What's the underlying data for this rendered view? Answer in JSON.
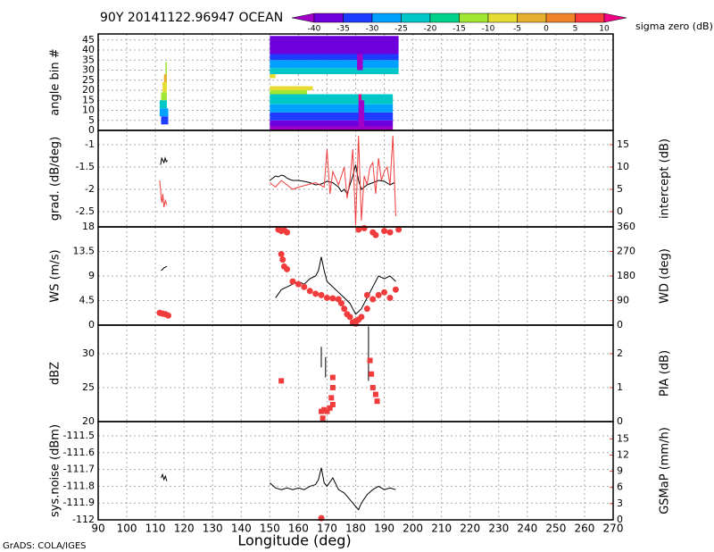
{
  "figure": {
    "title": "90Y 20141122.96947 OCEAN",
    "xlabel": "Longitude (deg)",
    "footer": "GrADS: COLA/IGES",
    "xlim": [
      90,
      270
    ],
    "xticks": [
      90,
      100,
      110,
      120,
      130,
      140,
      150,
      160,
      170,
      180,
      190,
      200,
      210,
      220,
      230,
      240,
      250,
      260,
      270
    ],
    "colorbar": {
      "label": "sigma zero (dB)",
      "ticks": [
        -40,
        -35,
        -30,
        -25,
        -20,
        -15,
        -10,
        -5,
        0,
        5,
        10
      ],
      "colors": [
        "#a000c8",
        "#6e00dc",
        "#1e3cff",
        "#00a0ff",
        "#00c8c8",
        "#00d28c",
        "#a0e632",
        "#e6dc32",
        "#e6af2d",
        "#f08228",
        "#fa3c3c",
        "#f00082"
      ]
    }
  },
  "chart_data": [
    {
      "type": "heatmap",
      "ylabel": "angle bin #",
      "ylim": [
        0,
        48
      ],
      "yticks": [
        0,
        5,
        10,
        15,
        20,
        25,
        30,
        35,
        40,
        45
      ],
      "cells": [
        {
          "x": [
            112,
            114.5
          ],
          "y": [
            3,
            7
          ],
          "value": -33
        },
        {
          "x": [
            111.5,
            114.5
          ],
          "y": [
            7,
            11
          ],
          "value": -27
        },
        {
          "x": [
            111.5,
            114
          ],
          "y": [
            11,
            15
          ],
          "value": -21
        },
        {
          "x": [
            112,
            114
          ],
          "y": [
            15,
            19
          ],
          "value": -13
        },
        {
          "x": [
            112.5,
            114
          ],
          "y": [
            19,
            24
          ],
          "value": -8
        },
        {
          "x": [
            113,
            114
          ],
          "y": [
            24,
            28
          ],
          "value": -3
        },
        {
          "x": [
            113.5,
            114
          ],
          "y": [
            28,
            34
          ],
          "value": -12
        },
        {
          "x": [
            150,
            193
          ],
          "y": [
            0,
            2
          ],
          "value": -42
        },
        {
          "x": [
            150,
            193
          ],
          "y": [
            2,
            5
          ],
          "value": -37
        },
        {
          "x": [
            150,
            193
          ],
          "y": [
            5,
            9
          ],
          "value": -32
        },
        {
          "x": [
            150,
            193
          ],
          "y": [
            9,
            13
          ],
          "value": -27
        },
        {
          "x": [
            150,
            193
          ],
          "y": [
            13,
            18
          ],
          "value": -22
        },
        {
          "x": [
            150,
            163
          ],
          "y": [
            18,
            20
          ],
          "value": -12
        },
        {
          "x": [
            150,
            165
          ],
          "y": [
            20,
            22
          ],
          "value": -8
        },
        {
          "x": [
            150,
            152
          ],
          "y": [
            26,
            28
          ],
          "value": -7
        },
        {
          "x": [
            150,
            195
          ],
          "y": [
            28,
            31
          ],
          "value": -22
        },
        {
          "x": [
            150,
            195
          ],
          "y": [
            31,
            35
          ],
          "value": -27
        },
        {
          "x": [
            150,
            195
          ],
          "y": [
            35,
            38
          ],
          "value": -32
        },
        {
          "x": [
            150,
            195
          ],
          "y": [
            38,
            47
          ],
          "value": -38
        },
        {
          "x": [
            181,
            183
          ],
          "y": [
            0,
            15
          ],
          "value": -45
        },
        {
          "x": [
            180.5,
            182.5
          ],
          "y": [
            30,
            38
          ],
          "value": -42
        },
        {
          "x": [
            181,
            182
          ],
          "y": [
            15,
            18
          ],
          "value": 12
        }
      ]
    },
    {
      "type": "line",
      "ylabel": "grad. (dB/deg)",
      "ylim": [
        -2.84,
        -0.68
      ],
      "yticks": [
        -2.5,
        -2,
        -1.5,
        -1
      ],
      "y2label": "intercept (dB)",
      "y2lim": [
        -3.4,
        18.2
      ],
      "y2ticks": [
        0,
        5,
        10,
        15
      ],
      "series": [
        {
          "style": "line",
          "axis": "y",
          "color": "#000000",
          "x": [
            111.8,
            112.2,
            112.6,
            113,
            113.4,
            113.8,
            114.2,
            130,
            150,
            151,
            152,
            153,
            154,
            155,
            156,
            157,
            158,
            160,
            162,
            164,
            166,
            168,
            170,
            172,
            174,
            175,
            176,
            177,
            178,
            179,
            180,
            181,
            182,
            184,
            186,
            188,
            190,
            192,
            193.5
          ],
          "values": [
            -1.45,
            -1.3,
            -1.35,
            -1.4,
            -1.3,
            -1.38,
            -1.35,
            null,
            -1.8,
            -1.75,
            -1.7,
            -1.72,
            -1.68,
            -1.7,
            -1.75,
            -1.78,
            -1.8,
            -1.8,
            -1.82,
            -1.85,
            -1.9,
            -1.88,
            -1.82,
            -1.85,
            -1.95,
            -2.05,
            -2.0,
            -2.1,
            -1.9,
            -1.7,
            -1.45,
            -1.8,
            -2.0,
            -1.9,
            -1.85,
            -1.8,
            -1.82,
            -1.9,
            -1.85
          ]
        },
        {
          "style": "line",
          "axis": "y2",
          "color": "#f03c3c",
          "x": [
            111.5,
            111.8,
            112,
            112.3,
            112.6,
            113,
            113.5,
            114,
            130,
            150,
            152,
            154,
            156,
            158,
            160,
            163,
            166,
            169,
            170,
            171,
            172,
            174,
            176,
            177,
            178,
            179,
            180,
            181,
            182,
            183,
            184,
            185,
            186,
            187,
            188,
            189,
            190,
            191,
            192,
            193,
            194
          ],
          "values": [
            7,
            5,
            3,
            2,
            4,
            1,
            2.5,
            1.5,
            null,
            6.5,
            5.5,
            7,
            6,
            5,
            5.5,
            6,
            6.5,
            5.5,
            14,
            4,
            9,
            6,
            10,
            3,
            7,
            14,
            -3,
            17,
            -2,
            8,
            6,
            10,
            11,
            4,
            12,
            7,
            9,
            10,
            6,
            17,
            -1
          ]
        }
      ]
    },
    {
      "type": "line",
      "ylabel": "WS (m/s)",
      "ylim": [
        0,
        18
      ],
      "yticks": [
        0,
        4.5,
        9,
        13.5,
        18
      ],
      "y2label": "WD (deg)",
      "y2lim": [
        0,
        360
      ],
      "y2ticks": [
        0,
        90,
        180,
        270,
        360
      ],
      "series": [
        {
          "style": "line",
          "axis": "y",
          "color": "#000000",
          "x": [
            112,
            112.5,
            113,
            113.5,
            114,
            130,
            152,
            154,
            156,
            158,
            160,
            162,
            164,
            166,
            167,
            168,
            169,
            170,
            172,
            174,
            176,
            178,
            180,
            182,
            184,
            186,
            188,
            190,
            192,
            194
          ],
          "values": [
            10,
            10.2,
            10.5,
            10.6,
            10.8,
            null,
            5,
            6.5,
            7,
            7.5,
            8,
            7.5,
            8.5,
            9,
            10,
            12.5,
            10,
            8,
            7,
            6,
            5,
            4,
            2,
            3,
            5,
            7,
            9,
            8.5,
            9,
            8
          ]
        },
        {
          "style": "circle",
          "axis": "y2",
          "color": "#f03c3c",
          "x": [
            111.5,
            112.5,
            113.5,
            114.5,
            153,
            154,
            155,
            156,
            154,
            154.5,
            155,
            156,
            158,
            160,
            162,
            164,
            166,
            168,
            170,
            172,
            174,
            175,
            176,
            177,
            179,
            180,
            181,
            182,
            184,
            186,
            188,
            190,
            192,
            194,
            181,
            183,
            186,
            187,
            190,
            192,
            195,
            184,
            178,
            180
          ],
          "values": [
            45,
            42,
            40,
            35,
            350,
            345,
            348,
            340,
            260,
            240,
            215,
            205,
            160,
            150,
            140,
            125,
            115,
            110,
            100,
            98,
            95,
            80,
            60,
            40,
            10,
            5,
            20,
            30,
            60,
            95,
            110,
            120,
            100,
            130,
            350,
            355,
            340,
            330,
            345,
            340,
            350,
            110,
            30,
            15
          ]
        }
      ]
    },
    {
      "type": "line",
      "ylabel": "dBZ",
      "ylim": [
        20,
        34.2
      ],
      "yticks": [
        20,
        25,
        30
      ],
      "y2label": "PIA (dB)",
      "y2lim": [
        0,
        2.84
      ],
      "y2ticks": [
        0,
        1,
        2
      ],
      "series": [
        {
          "style": "line",
          "axis": "y",
          "color": "#000000",
          "x": [
            168,
            168,
            168.5,
            169.5,
            169.5,
            170,
            184.5,
            184.5
          ],
          "values": [
            28,
            31,
            null,
            26.5,
            29.5,
            null,
            26,
            34
          ]
        },
        {
          "style": "square",
          "axis": "y2",
          "color": "#f03c3c",
          "x": [
            154,
            168,
            168.5,
            169,
            170,
            171,
            171.5,
            172,
            172,
            172,
            185,
            185.5,
            186,
            187.5,
            187
          ],
          "values": [
            1.2,
            0.3,
            0.1,
            0.35,
            0.3,
            0.4,
            0.7,
            1.0,
            1.3,
            0.5,
            1.8,
            1.4,
            1.0,
            0.6,
            0.8
          ]
        }
      ]
    },
    {
      "type": "line",
      "ylabel": "sys.noise (dBm)",
      "ylim": [
        -112,
        -111.415
      ],
      "yticks": [
        -112,
        -111.9,
        -111.8,
        -111.7,
        -111.6,
        -111.5
      ],
      "y2label": "GSMaP (mm/h)",
      "y2lim": [
        0,
        18.2
      ],
      "y2ticks": [
        0,
        3,
        6,
        9,
        12,
        15
      ],
      "series": [
        {
          "style": "line",
          "axis": "y",
          "color": "#000000",
          "x": [
            112,
            112.5,
            113,
            113.5,
            114,
            130,
            150,
            152,
            154,
            156,
            158,
            160,
            162,
            164,
            166,
            167,
            168,
            169,
            170,
            172,
            174,
            176,
            178,
            180,
            181,
            182,
            184,
            186,
            188,
            190,
            192,
            194
          ],
          "values": [
            -111.75,
            -111.73,
            -111.76,
            -111.74,
            -111.77,
            null,
            -111.78,
            -111.81,
            -111.82,
            -111.81,
            -111.82,
            -111.81,
            -111.82,
            -111.8,
            -111.79,
            -111.76,
            -111.69,
            -111.78,
            -111.8,
            -111.75,
            -111.82,
            -111.84,
            -111.88,
            -111.92,
            -111.94,
            -111.9,
            -111.85,
            -111.82,
            -111.8,
            -111.82,
            -111.81,
            -111.82
          ]
        },
        {
          "style": "circle",
          "axis": "y2",
          "color": "#f03c3c",
          "x": [
            168
          ],
          "values": [
            0.3
          ]
        }
      ]
    }
  ]
}
